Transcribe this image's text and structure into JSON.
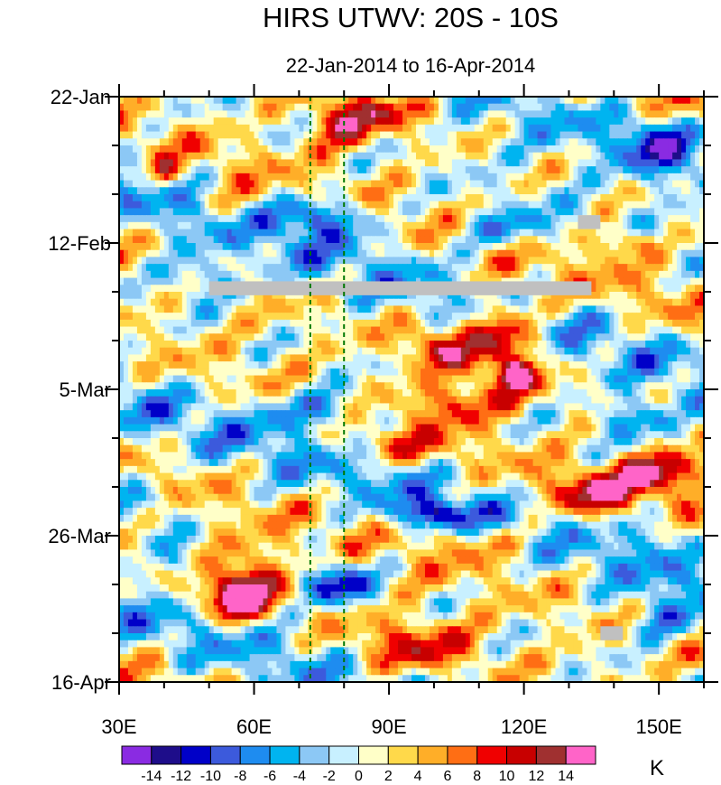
{
  "chart_data": {
    "type": "heatmap",
    "title": "HIRS UTWV: 20S - 10S",
    "subtitle": "22-Jan-2014 to 16-Apr-2014",
    "x_label": "",
    "y_label": "",
    "x_range": [
      30,
      160
    ],
    "y_range_days": [
      0,
      84
    ],
    "x_ticks": [
      {
        "value": 30,
        "label": "30E"
      },
      {
        "value": 60,
        "label": "60E"
      },
      {
        "value": 90,
        "label": "90E"
      },
      {
        "value": 120,
        "label": "120E"
      },
      {
        "value": 150,
        "label": "150E"
      }
    ],
    "y_ticks": [
      {
        "day": 0,
        "label": "22-Jan"
      },
      {
        "day": 21,
        "label": "12-Feb"
      },
      {
        "day": 42,
        "label": "5-Mar"
      },
      {
        "day": 63,
        "label": "26-Mar"
      },
      {
        "day": 84,
        "label": "16-Apr"
      }
    ],
    "reference_lines_lon": [
      72.5,
      80
    ],
    "missing_data": [
      {
        "lon": [
          50,
          135
        ],
        "day": [
          26.5,
          28.5
        ]
      },
      {
        "lon": [
          132,
          137
        ],
        "day": [
          17,
          19
        ]
      },
      {
        "lon": [
          137,
          142
        ],
        "day": [
          76,
          78
        ]
      }
    ],
    "anomaly_features": [
      {
        "lon": 80,
        "day": 4,
        "value": 8,
        "spread_lon": 9,
        "spread_day": 4
      },
      {
        "lon": 90,
        "day": 2,
        "value": 7,
        "spread_lon": 14,
        "spread_day": 3
      },
      {
        "lon": 40,
        "day": 11,
        "value": 9,
        "spread_lon": 3,
        "spread_day": 2
      },
      {
        "lon": 57,
        "day": 16,
        "value": 5,
        "spread_lon": 6,
        "spread_day": 3
      },
      {
        "lon": 75,
        "day": 17,
        "value": -10,
        "spread_lon": 12,
        "spread_day": 3
      },
      {
        "lon": 115,
        "day": 19,
        "value": -8,
        "spread_lon": 12,
        "spread_day": 3
      },
      {
        "lon": 150,
        "day": 7,
        "value": -8,
        "spread_lon": 8,
        "spread_day": 4
      },
      {
        "lon": 142,
        "day": 21,
        "value": 8,
        "spread_lon": 6,
        "spread_day": 2
      },
      {
        "lon": 115,
        "day": 34,
        "value": 12,
        "spread_lon": 9,
        "spread_day": 6
      },
      {
        "lon": 100,
        "day": 36,
        "value": 9,
        "spread_lon": 7,
        "spread_day": 3
      },
      {
        "lon": 118,
        "day": 40,
        "value": 13,
        "spread_lon": 4,
        "spread_day": 2
      },
      {
        "lon": 105,
        "day": 44,
        "value": 8,
        "spread_lon": 12,
        "spread_day": 3
      },
      {
        "lon": 150,
        "day": 54,
        "value": 14,
        "spread_lon": 9,
        "spread_day": 3
      },
      {
        "lon": 135,
        "day": 57,
        "value": 10,
        "spread_lon": 10,
        "spread_day": 3
      },
      {
        "lon": 56,
        "day": 72,
        "value": 14,
        "spread_lon": 6,
        "spread_day": 3
      },
      {
        "lon": 58,
        "day": 69,
        "value": 8,
        "spread_lon": 12,
        "spread_day": 5
      },
      {
        "lon": 95,
        "day": 79,
        "value": 8,
        "spread_lon": 14,
        "spread_day": 4
      },
      {
        "lon": 112,
        "day": 64,
        "value": 5,
        "spread_lon": 15,
        "spread_day": 3
      },
      {
        "lon": 78,
        "day": 70,
        "value": -12,
        "spread_lon": 8,
        "spread_day": 3
      },
      {
        "lon": 45,
        "day": 67,
        "value": -8,
        "spread_lon": 5,
        "spread_day": 3
      },
      {
        "lon": 100,
        "day": 60,
        "value": -10,
        "spread_lon": 8,
        "spread_day": 2
      },
      {
        "lon": 75,
        "day": 45,
        "value": -8,
        "spread_lon": 12,
        "spread_day": 3
      },
      {
        "lon": 48,
        "day": 26,
        "value": -8,
        "spread_lon": 8,
        "spread_day": 3
      },
      {
        "lon": 145,
        "day": 46,
        "value": -8,
        "spread_lon": 8,
        "spread_day": 3
      },
      {
        "lon": 150,
        "day": 62,
        "value": -6,
        "spread_lon": 6,
        "spread_day": 3
      },
      {
        "lon": 150,
        "day": 75,
        "value": -8,
        "spread_lon": 7,
        "spread_day": 3
      },
      {
        "lon": 35,
        "day": 58,
        "value": -6,
        "spread_lon": 6,
        "spread_day": 3
      },
      {
        "lon": 90,
        "day": 50,
        "value": 5,
        "spread_lon": 14,
        "spread_day": 3
      }
    ],
    "colorbar": {
      "units": "K",
      "labels": [
        "-14",
        "-12",
        "-10",
        "-8",
        "-6",
        "-4",
        "-2",
        "0",
        "2",
        "4",
        "6",
        "8",
        "10",
        "12",
        "14"
      ],
      "levels": [
        -14,
        -12,
        -10,
        -8,
        -6,
        -4,
        -2,
        0,
        2,
        4,
        6,
        8,
        10,
        12,
        14
      ],
      "colors": [
        "#8a2be2",
        "#1e0d8a",
        "#0000c8",
        "#3c5adc",
        "#1e8cf0",
        "#00b4f0",
        "#8cc8f5",
        "#c8f0ff",
        "#ffffc8",
        "#ffd94a",
        "#ffae28",
        "#ff6e14",
        "#f00000",
        "#c80000",
        "#a03030",
        "#ff64c8"
      ]
    },
    "missing_color": "#c0c0c0",
    "reference_line_color": "#007800"
  }
}
